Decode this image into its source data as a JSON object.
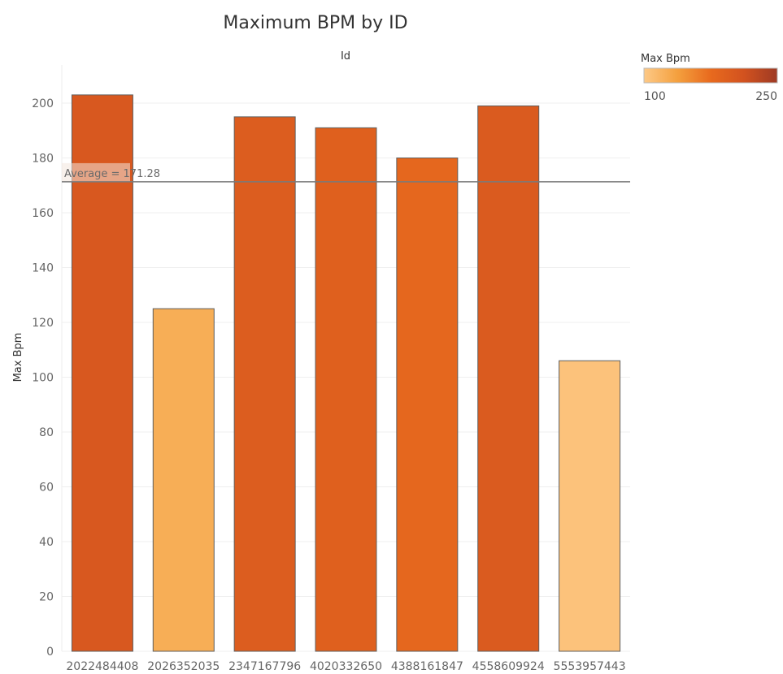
{
  "chart_data": {
    "type": "bar",
    "title": "Maximum BPM by ID",
    "column_header": "Id",
    "ylabel": "Max Bpm",
    "categories": [
      "2022484408",
      "2026352035",
      "2347167796",
      "4020332650",
      "4388161847",
      "4558609924",
      "5553957443"
    ],
    "values": [
      203,
      125,
      195,
      191,
      180,
      199,
      106
    ],
    "ylim": [
      0,
      212
    ],
    "yticks": [
      0,
      20,
      40,
      60,
      80,
      100,
      120,
      140,
      160,
      180,
      200
    ],
    "grid": true,
    "reference_line": {
      "label": "Average = 171.28",
      "value": 171.28
    },
    "legend": {
      "title": "Max Bpm",
      "min_label": "100",
      "max_label": "250",
      "min": 100,
      "max": 250,
      "placement": "top-right",
      "colors": [
        "#fdc987",
        "#f4a03e",
        "#e86a1e",
        "#d2521f",
        "#9e3a24"
      ]
    }
  }
}
